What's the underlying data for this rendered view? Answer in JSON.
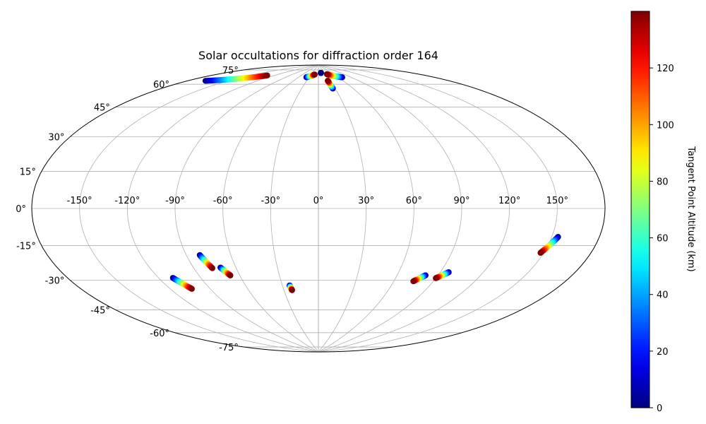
{
  "chart_data": {
    "type": "scatter",
    "projection": "aitoff",
    "title": "Solar occultations for diffraction order 164",
    "grid": true,
    "longitude_ticks": [
      -150,
      -120,
      -90,
      -60,
      -30,
      0,
      30,
      60,
      90,
      120,
      150
    ],
    "longitude_tick_labels": [
      "-150°",
      "-120°",
      "-90°",
      "-60°",
      "-30°",
      "0°",
      "30°",
      "60°",
      "90°",
      "120°",
      "150°"
    ],
    "latitude_ticks": [
      -75,
      -60,
      -45,
      -30,
      -15,
      0,
      15,
      30,
      45,
      60,
      75
    ],
    "latitude_tick_labels": [
      "-75°",
      "-60°",
      "-45°",
      "-30°",
      "-15°",
      "0°",
      "15°",
      "30°",
      "45°",
      "60°",
      "75°"
    ],
    "colorbar": {
      "label": "Tangent Point Altitude (km)",
      "colormap": "jet",
      "range": [
        0,
        140
      ],
      "ticks": [
        0,
        20,
        40,
        60,
        80,
        100,
        120
      ],
      "tick_labels": [
        "0",
        "20",
        "40",
        "60",
        "80",
        "100",
        "120"
      ]
    },
    "tracks": [
      {
        "start": {
          "lon": -168,
          "lat": 66,
          "alt": 0
        },
        "end": {
          "lon": -130,
          "lat": 78,
          "alt": 140
        }
      },
      {
        "start": {
          "lon": -38,
          "lat": 82,
          "alt": 0
        },
        "end": {
          "lon": -15,
          "lat": 84,
          "alt": 140
        }
      },
      {
        "start": {
          "lon": 12,
          "lat": 85,
          "alt": 0
        },
        "end": {
          "lon": 12,
          "lat": 85,
          "alt": 0
        }
      },
      {
        "start": {
          "lon": 70,
          "lat": 81,
          "alt": 0
        },
        "end": {
          "lon": 35,
          "lat": 84,
          "alt": 140
        }
      },
      {
        "start": {
          "lon": 26,
          "lat": 75,
          "alt": 0
        },
        "end": {
          "lon": 24,
          "lat": 80,
          "alt": 140
        }
      },
      {
        "start": {
          "lon": -110,
          "lat": -38,
          "alt": 0
        },
        "end": {
          "lon": -104,
          "lat": -45,
          "alt": 140
        }
      },
      {
        "start": {
          "lon": -81,
          "lat": -27,
          "alt": 0
        },
        "end": {
          "lon": -77,
          "lat": -35,
          "alt": 140
        }
      },
      {
        "start": {
          "lon": -71,
          "lat": -35,
          "alt": 0
        },
        "end": {
          "lon": -67,
          "lat": -40,
          "alt": 140
        }
      },
      {
        "start": {
          "lon": -24,
          "lat": -48,
          "alt": 0
        },
        "end": {
          "lon": -23,
          "lat": -51,
          "alt": 140
        }
      },
      {
        "start": {
          "lon": 81,
          "lat": -39,
          "alt": 0
        },
        "end": {
          "lon": 75,
          "lat": -43,
          "alt": 140
        }
      },
      {
        "start": {
          "lon": 96,
          "lat": -36,
          "alt": 0
        },
        "end": {
          "lon": 90,
          "lat": -40,
          "alt": 140
        }
      },
      {
        "start": {
          "lon": 154,
          "lat": -13,
          "alt": 0
        },
        "end": {
          "lon": 148,
          "lat": -21,
          "alt": 140
        }
      }
    ]
  }
}
